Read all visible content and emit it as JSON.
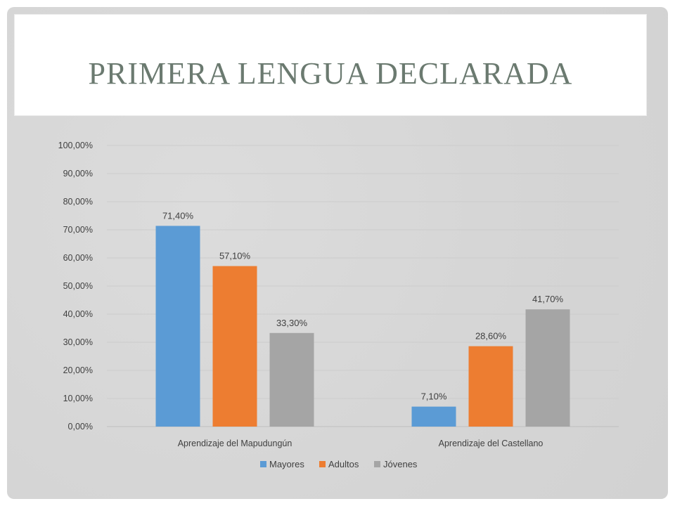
{
  "slide": {
    "title": "PRIMERA LENGUA DECLARADA"
  },
  "chart_data": {
    "type": "bar",
    "categories": [
      "Aprendizaje del Mapudungún",
      "Aprendizaje del Castellano"
    ],
    "series": [
      {
        "name": "Mayores",
        "values": [
          71.4,
          7.1
        ],
        "labels": [
          "71,40%",
          "7,10%"
        ],
        "color": "#5b9bd5"
      },
      {
        "name": "Adultos",
        "values": [
          57.1,
          28.6
        ],
        "labels": [
          "57,10%",
          "28,60%"
        ],
        "color": "#ed7d31"
      },
      {
        "name": "Jóvenes",
        "values": [
          33.3,
          41.7
        ],
        "labels": [
          "33,30%",
          "41,70%"
        ],
        "color": "#a5a5a5"
      }
    ],
    "ylim": [
      0,
      100
    ],
    "yticks": [
      0,
      10,
      20,
      30,
      40,
      50,
      60,
      70,
      80,
      90,
      100
    ],
    "ytick_labels": [
      "0,00%",
      "10,00%",
      "20,00%",
      "30,00%",
      "40,00%",
      "50,00%",
      "60,00%",
      "70,00%",
      "80,00%",
      "90,00%",
      "100,00%"
    ],
    "grid": true,
    "legend": "bottom"
  }
}
